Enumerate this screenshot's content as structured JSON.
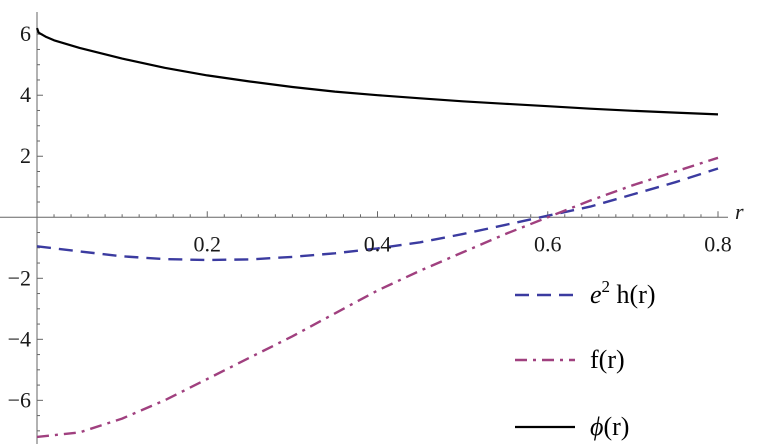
{
  "chart_data": {
    "type": "line",
    "title": "",
    "xlabel": "r",
    "ylabel": "",
    "xlim": [
      0,
      0.8
    ],
    "ylim": [
      -7.3,
      6.4
    ],
    "grid": false,
    "legend_placement": "bottom-right",
    "x_ticks": [
      0.2,
      0.4,
      0.6,
      0.8
    ],
    "x_tick_labels": [
      "0.2",
      "0.4",
      "0.6",
      "0.8"
    ],
    "y_ticks": [
      6,
      4,
      2,
      -2,
      -4,
      -6
    ],
    "y_tick_labels": [
      "6",
      "4",
      "2",
      "−2",
      "−4",
      "−6"
    ],
    "series": [
      {
        "key": "h",
        "legend": {
          "prefix": "e",
          "sup": "2",
          "text": " h(r)"
        },
        "color": "#3b3ba0",
        "style": "dashed",
        "x": [
          0.0,
          0.05,
          0.1,
          0.15,
          0.2,
          0.25,
          0.3,
          0.35,
          0.4,
          0.45,
          0.5,
          0.55,
          0.6,
          0.65,
          0.7,
          0.75,
          0.8
        ],
        "y": [
          -0.95,
          -1.12,
          -1.28,
          -1.37,
          -1.4,
          -1.38,
          -1.3,
          -1.18,
          -1.02,
          -0.82,
          -0.55,
          -0.25,
          0.05,
          0.35,
          0.75,
          1.15,
          1.6
        ]
      },
      {
        "key": "f",
        "legend": {
          "text": "f(r)"
        },
        "color": "#a0407f",
        "style": "dashdot",
        "x": [
          0.0,
          0.05,
          0.1,
          0.15,
          0.2,
          0.25,
          0.3,
          0.35,
          0.4,
          0.45,
          0.5,
          0.55,
          0.6,
          0.65,
          0.7,
          0.75,
          0.8
        ],
        "y": [
          -7.2,
          -7.05,
          -6.6,
          -6.0,
          -5.3,
          -4.6,
          -3.9,
          -3.15,
          -2.4,
          -1.75,
          -1.15,
          -0.55,
          0.0,
          0.55,
          1.05,
          1.5,
          1.95
        ]
      },
      {
        "key": "phi",
        "legend": {
          "symbol": "ϕ",
          "text": "(r)"
        },
        "color": "#000000",
        "style": "solid",
        "x": [
          0.0,
          0.002,
          0.01,
          0.02,
          0.05,
          0.1,
          0.15,
          0.2,
          0.25,
          0.3,
          0.35,
          0.4,
          0.45,
          0.5,
          0.55,
          0.6,
          0.65,
          0.7,
          0.75,
          0.8
        ],
        "y": [
          6.2,
          6.05,
          5.92,
          5.8,
          5.55,
          5.2,
          4.9,
          4.65,
          4.45,
          4.27,
          4.12,
          4.0,
          3.9,
          3.8,
          3.72,
          3.64,
          3.56,
          3.49,
          3.43,
          3.37
        ]
      }
    ]
  }
}
